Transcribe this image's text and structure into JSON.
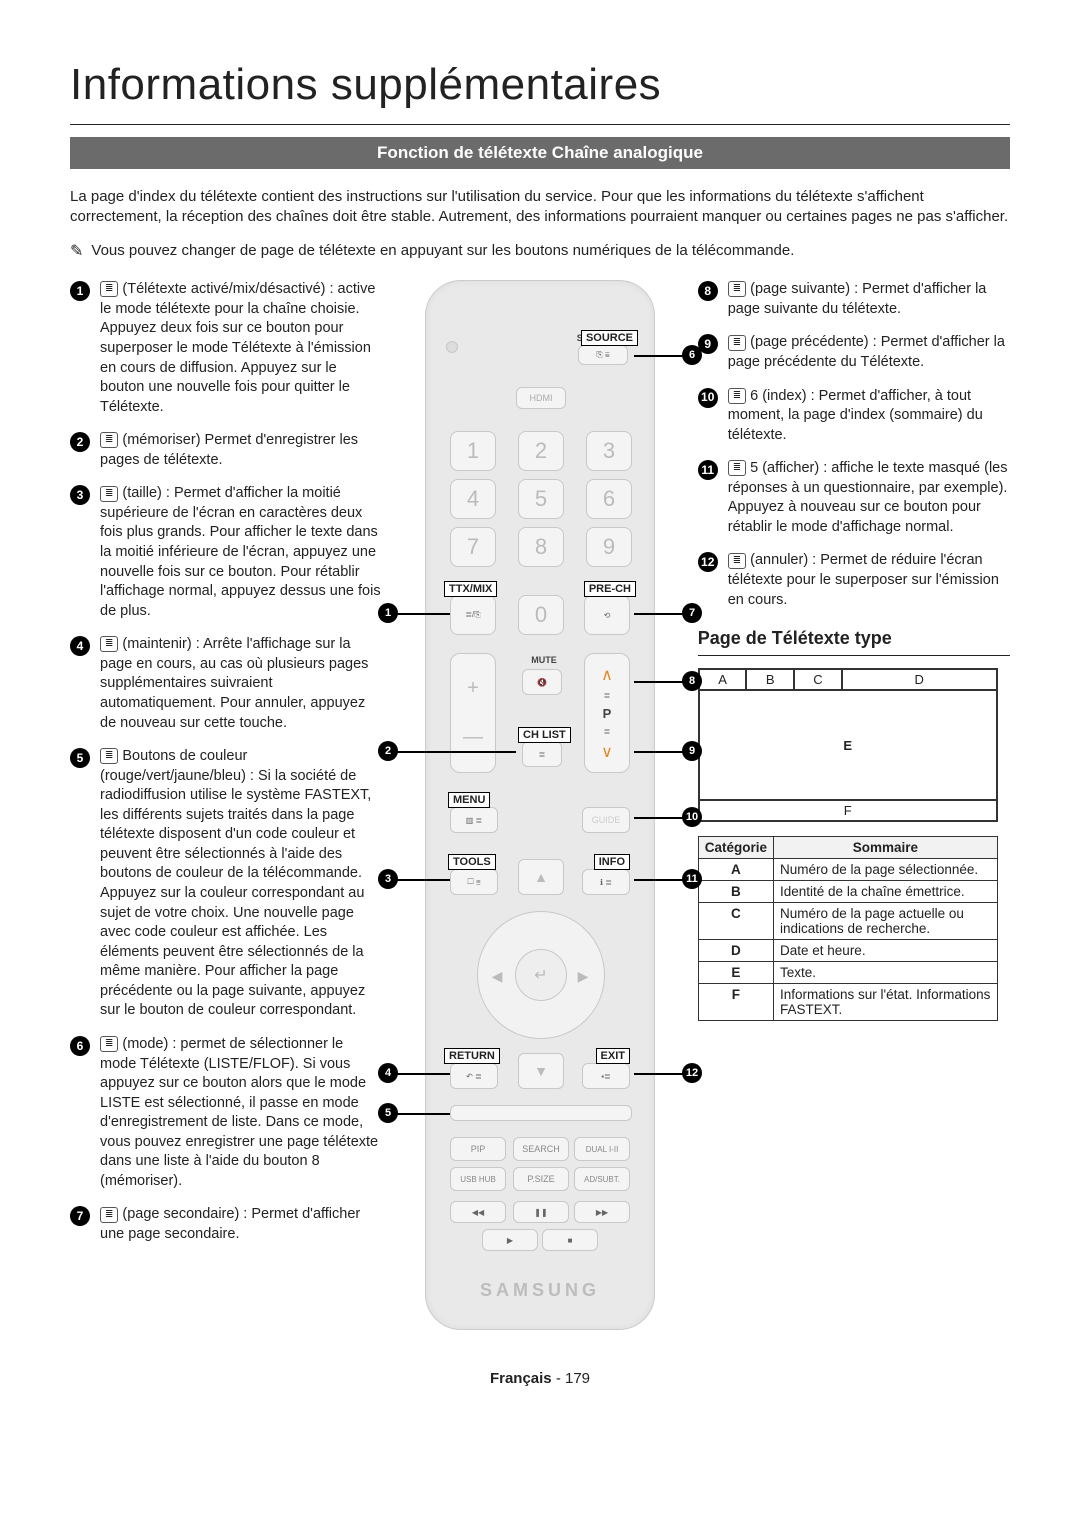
{
  "title": "Informations supplémentaires",
  "section_bar": "Fonction de télétexte Chaîne analogique",
  "intro": "La page d'index du télétexte contient des instructions sur l'utilisation du service. Pour que les informations du télétexte s'affichent correctement, la réception des chaînes doit être stable. Autrement, des informations pourraient manquer ou certaines pages ne pas s'afficher.",
  "note_icon": "✎",
  "note_text": "Vous pouvez changer de page de télétexte en appuyant sur les boutons numériques de la télécommande.",
  "left_items": [
    "(Télétexte activé/mix/désactivé) : active le mode télétexte pour la chaîne choisie. Appuyez deux fois sur ce bouton pour superposer le mode Télétexte à l'émission en cours de diffusion. Appuyez sur le bouton une nouvelle fois pour quitter le Télétexte.",
    "(mémoriser) Permet d'enregistrer les pages de télétexte.",
    "(taille) : Permet d'afficher la moitié supérieure de l'écran en caractères deux fois plus grands. Pour afficher le texte dans la moitié inférieure de l'écran, appuyez une nouvelle fois sur ce bouton. Pour rétablir l'affichage normal, appuyez dessus une fois de plus.",
    "(maintenir) : Arrête l'affichage sur la page en cours, au cas où plusieurs pages supplémentaires suivraient automatiquement. Pour annuler, appuyez de nouveau sur cette touche.",
    "Boutons de couleur (rouge/vert/jaune/bleu) : Si la société de radiodiffusion utilise le système FASTEXT, les différents sujets traités dans la page télétexte disposent d'un code couleur et peuvent être sélectionnés à l'aide des boutons de couleur de la télécommande. Appuyez sur la couleur correspondant au sujet de votre choix. Une nouvelle page avec code couleur est affichée. Les éléments peuvent être sélectionnés de la même manière. Pour afficher la page précédente ou la page suivante, appuyez sur le bouton de couleur correspondant.",
    "(mode) : permet de sélectionner le mode Télétexte (LISTE/FLOF). Si vous appuyez sur ce bouton alors que le mode LISTE est sélectionné, il passe en mode d'enregistrement de liste. Dans ce mode, vous pouvez enregistrer une page télétexte dans une liste à l'aide du bouton 8 (mémoriser).",
    "(page secondaire) : Permet d'afficher une page secondaire."
  ],
  "right_items": [
    "(page suivante) : Permet d'afficher la page suivante du télétexte.",
    "(page précédente) : Permet d'afficher la page précédente du Télétexte.",
    "6 (index) : Permet d'afficher, à tout moment, la page d'index (sommaire) du télétexte.",
    "5 (afficher) : affiche le texte masqué (les réponses à un questionnaire, par exemple). Appuyez à nouveau sur ce bouton pour rétablir le mode d'affichage normal.",
    "(annuler) : Permet de réduire l'écran télétexte pour le superposer sur l'émission en cours."
  ],
  "right_start": 8,
  "teletext_heading": "Page de Télétexte type",
  "diagram_labels": {
    "a": "A",
    "b": "B",
    "c": "C",
    "d": "D",
    "e": "E",
    "f": "F"
  },
  "table": {
    "head": [
      "Catégorie",
      "Sommaire"
    ],
    "rows": [
      [
        "A",
        "Numéro de la page sélectionnée."
      ],
      [
        "B",
        "Identité de la chaîne émettrice."
      ],
      [
        "C",
        "Numéro de la page actuelle ou indications de recherche."
      ],
      [
        "D",
        "Date et heure."
      ],
      [
        "E",
        "Texte."
      ],
      [
        "F",
        "Informations sur l'état. Informations FASTEXT."
      ]
    ]
  },
  "footer_lang": "Français",
  "footer_page": "179",
  "remote": {
    "brand": "SAMSUNG",
    "labels": {
      "source": "SOURCE",
      "hdmi": "HDMI",
      "ttxmix": "TTX/MIX",
      "prech": "PRE-CH",
      "mute": "MUTE",
      "chlist": "CH LIST",
      "menu": "MENU",
      "guide": "GUIDE",
      "tools": "TOOLS",
      "info": "INFO",
      "return": "RETURN",
      "exit": "EXIT",
      "pip": "PIP",
      "search": "SEARCH",
      "dual": "DUAL I-II",
      "usb": "USB HUB",
      "psize": "P.SIZE",
      "adsubt": "AD/SUBT.",
      "p": "P"
    },
    "numbers": [
      "1",
      "2",
      "3",
      "4",
      "5",
      "6",
      "7",
      "8",
      "9",
      "0"
    ]
  },
  "box_labels": [
    "SOURCE",
    "TTX/MIX",
    "PRE-CH",
    "CH LIST",
    "MENU",
    "TOOLS",
    "INFO",
    "RETURN",
    "EXIT"
  ]
}
